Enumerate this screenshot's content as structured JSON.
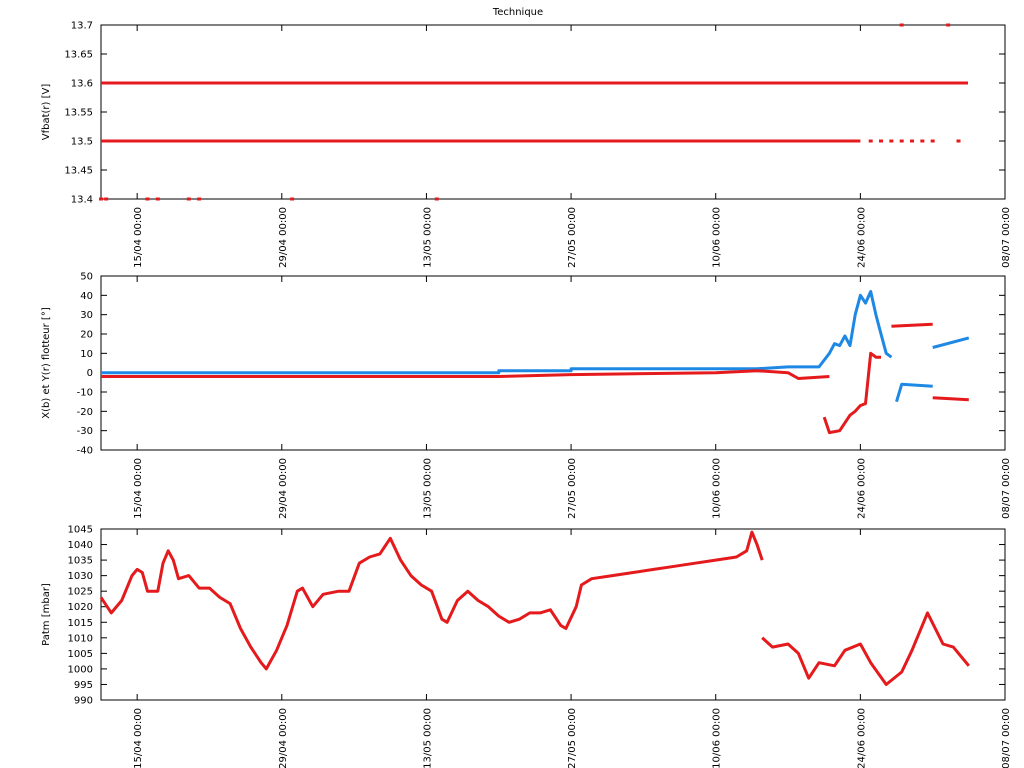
{
  "chart_data": [
    {
      "type": "line",
      "title": "Technique",
      "y_label": "Vfbat(r) [V]",
      "xlim": [
        "11/04 12:00",
        "08/07 00:00"
      ],
      "xticks": [
        "15/04 00:00",
        "29/04 00:00",
        "13/05 00:00",
        "27/05 00:00",
        "10/06 00:00",
        "24/06 00:00",
        "08/07 00:00"
      ],
      "ylim": [
        13.4,
        13.7
      ],
      "yticks": [
        13.4,
        13.45,
        13.5,
        13.55,
        13.6,
        13.65,
        13.7
      ],
      "series": [
        {
          "color": "#e41a1c",
          "x": [
            "11/04 12:00",
            "04/07 10:00",
            null,
            "11/04 12:00",
            "24/06 00:00",
            null,
            "25/06 00:00",
            null,
            "26/06 00:00",
            null,
            "27/06 00:00",
            null,
            "28/06 00:00",
            null,
            "29/06 00:00",
            null,
            "30/06 00:00",
            null,
            "01/07 00:00",
            null,
            "03/07 12:00",
            null,
            "11/04 12:00",
            null,
            "12/04 00:00",
            null,
            "16/04 00:00",
            null,
            "17/04 00:00",
            null,
            "20/04 00:00",
            null,
            "21/04 00:00",
            null,
            "30/04 00:00",
            null,
            "14/05 00:00",
            null,
            "28/06 00:00",
            null,
            "02/07 12:00"
          ],
          "values": [
            13.6,
            13.6,
            null,
            13.5,
            13.5,
            null,
            13.5,
            null,
            13.5,
            null,
            13.5,
            null,
            13.5,
            null,
            13.5,
            null,
            13.5,
            null,
            13.5,
            null,
            13.5,
            null,
            13.4,
            null,
            13.4,
            null,
            13.4,
            null,
            13.4,
            null,
            13.4,
            null,
            13.4,
            null,
            13.4,
            null,
            13.4,
            null,
            13.7,
            null,
            13.7
          ]
        }
      ]
    },
    {
      "type": "line",
      "y_label": "X(b) et Y(r) flotteur [°]",
      "xlim": [
        "11/04 12:00",
        "08/07 00:00"
      ],
      "xticks": [
        "15/04 00:00",
        "29/04 00:00",
        "13/05 00:00",
        "27/05 00:00",
        "10/06 00:00",
        "24/06 00:00",
        "08/07 00:00"
      ],
      "ylim": [
        -40,
        50
      ],
      "yticks": [
        -40,
        -30,
        -20,
        -10,
        0,
        10,
        20,
        30,
        40,
        50
      ],
      "series": [
        {
          "color": "#1e88e5",
          "x": [
            "11/04 12:00",
            "20/05 00:00",
            "20/05 00:00",
            "27/05 00:00",
            "27/05 00:00",
            "10/06 00:00",
            "14/06 00:00",
            "17/06 00:00",
            "20/06 00:00",
            "21/06 00:00",
            "21/06 12:00",
            "22/06 00:00",
            "22/06 12:00",
            "23/06 00:00",
            "23/06 12:00",
            "24/06 00:00",
            "24/06 12:00",
            "25/06 00:00",
            "25/06 12:00",
            "26/06 00:00",
            "26/06 12:00",
            "27/06 00:00",
            null,
            "27/06 12:00",
            "28/06 00:00",
            "01/07 00:00",
            null,
            "01/07 00:00",
            "04/07 12:00"
          ],
          "values": [
            0,
            0,
            1,
            1,
            2,
            2,
            2,
            3,
            3,
            10,
            15,
            14,
            19,
            14,
            30,
            40,
            36,
            42,
            30,
            20,
            10,
            8,
            null,
            -15,
            -6,
            -7,
            null,
            13,
            18
          ]
        },
        {
          "color": "#e41a1c",
          "x": [
            "11/04 12:00",
            "20/05 00:00",
            "27/05 00:00",
            "10/06 00:00",
            "14/06 00:00",
            "17/06 00:00",
            "18/06 00:00",
            "21/06 00:00",
            null,
            "20/06 12:00",
            "21/06 00:00",
            "22/06 00:00",
            "23/06 00:00",
            "23/06 12:00",
            "24/06 00:00",
            "24/06 12:00",
            "25/06 00:00",
            "25/06 12:00",
            "26/06 00:00",
            null,
            "27/06 00:00",
            "01/07 00:00",
            null,
            "01/07 00:00",
            "04/07 12:00"
          ],
          "values": [
            -2,
            -2,
            -1,
            0,
            1,
            0,
            -3,
            -2,
            null,
            -23,
            -31,
            -30,
            -22,
            -20,
            -17,
            -16,
            10,
            8,
            8,
            null,
            24,
            25,
            null,
            -13,
            -14
          ]
        }
      ]
    },
    {
      "type": "line",
      "y_label": "Patm [mbar]",
      "xlim": [
        "11/04 12:00",
        "08/07 00:00"
      ],
      "xticks": [
        "15/04 00:00",
        "29/04 00:00",
        "13/05 00:00",
        "27/05 00:00",
        "10/06 00:00",
        "24/06 00:00",
        "08/07 00:00"
      ],
      "ylim": [
        990,
        1045
      ],
      "yticks": [
        990,
        995,
        1000,
        1005,
        1010,
        1015,
        1020,
        1025,
        1030,
        1035,
        1040,
        1045
      ],
      "series": [
        {
          "color": "#e41a1c",
          "x": [
            "11/04 12:00",
            "12/04 12:00",
            "13/04 12:00",
            "14/04 12:00",
            "15/04 00:00",
            "15/04 12:00",
            "16/04 00:00",
            "17/04 00:00",
            "17/04 12:00",
            "18/04 00:00",
            "18/04 12:00",
            "19/04 00:00",
            "20/04 00:00",
            "21/04 00:00",
            "22/04 00:00",
            "23/04 00:00",
            "24/04 00:00",
            "25/04 00:00",
            "26/04 00:00",
            "27/04 00:00",
            "27/04 12:00",
            "28/04 12:00",
            "29/04 12:00",
            "30/04 12:00",
            "01/05 00:00",
            "02/05 00:00",
            "03/05 00:00",
            "04/05 12:00",
            "05/05 12:00",
            "06/05 12:00",
            "07/05 12:00",
            "08/05 12:00",
            "09/05 12:00",
            "10/05 12:00",
            "11/05 12:00",
            "12/05 12:00",
            "13/05 12:00",
            "14/05 12:00",
            "15/05 00:00",
            "16/05 00:00",
            "17/05 00:00",
            "18/05 00:00",
            "19/05 00:00",
            "20/05 00:00",
            "21/05 00:00",
            "22/05 00:00",
            "23/05 00:00",
            "24/05 00:00",
            "25/05 00:00",
            "26/05 00:00",
            "26/05 12:00",
            "27/05 12:00",
            "28/05 00:00",
            "29/05 00:00",
            "31/05 00:00",
            "02/06 00:00",
            "04/06 00:00",
            "06/06 00:00",
            "08/06 00:00",
            "10/06 00:00",
            "12/06 00:00",
            "13/06 00:00",
            "13/06 12:00",
            "14/06 00:00",
            "14/06 12:00",
            null,
            "14/06 12:00",
            "15/06 12:00",
            "17/06 00:00",
            "18/06 00:00",
            "19/06 00:00",
            "20/06 00:00",
            "21/06 12:00",
            "22/06 12:00",
            "24/06 00:00",
            "25/06 00:00",
            "26/06 12:00",
            "28/06 00:00",
            "29/06 00:00",
            "30/06 12:00",
            "02/07 00:00",
            "03/07 00:00",
            "04/07 12:00"
          ],
          "values": [
            1023,
            1018,
            1022,
            1030,
            1032,
            1031,
            1025,
            1025,
            1034,
            1038,
            1035,
            1029,
            1030,
            1026,
            1026,
            1023,
            1021,
            1013,
            1007,
            1002,
            1000,
            1006,
            1014,
            1025,
            1026,
            1020,
            1024,
            1025,
            1025,
            1034,
            1036,
            1037,
            1042,
            1035,
            1030,
            1027,
            1025,
            1016,
            1015,
            1022,
            1025,
            1022,
            1020,
            1017,
            1015,
            1016,
            1018,
            1018,
            1019,
            1014,
            1013,
            1020,
            1027,
            1029,
            1030,
            1031,
            1032,
            1033,
            1034,
            1035,
            1036,
            1038,
            1044,
            1040,
            1035,
            null,
            1010,
            1007,
            1008,
            1005,
            997,
            1002,
            1001,
            1006,
            1008,
            1002,
            995,
            999,
            1006,
            1018,
            1008,
            1007,
            1001
          ]
        }
      ]
    }
  ]
}
